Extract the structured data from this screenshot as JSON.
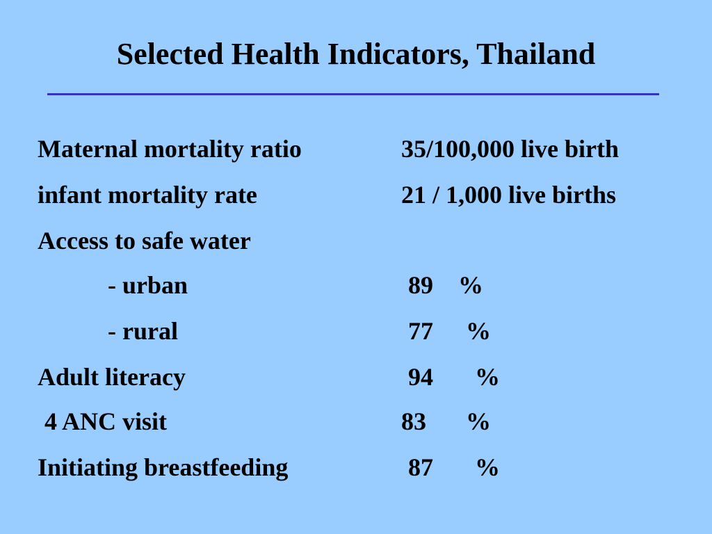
{
  "slide": {
    "title": "Selected Health Indicators, Thailand",
    "accent_color": "#3333cc",
    "background_color": "#99ccff",
    "indicators": [
      {
        "label": "Maternal mortality ratio",
        "value": "35/100,000 live birth",
        "unit": ""
      },
      {
        "label": "infant mortality rate",
        "value": "21 / 1,000 live births",
        "unit": ""
      },
      {
        "label": "Access to safe water",
        "value": "",
        "unit": ""
      },
      {
        "label": "- urban",
        "value": "89",
        "unit": "%"
      },
      {
        "label": "- rural",
        "value": "77",
        "unit": "%"
      },
      {
        "label": "Adult literacy",
        "value": "94",
        "unit": "%"
      },
      {
        "label": "4 ANC visit",
        "value": "83",
        "unit": "%"
      },
      {
        "label": "Initiating breastfeeding",
        "value": "87",
        "unit": "%"
      }
    ]
  }
}
